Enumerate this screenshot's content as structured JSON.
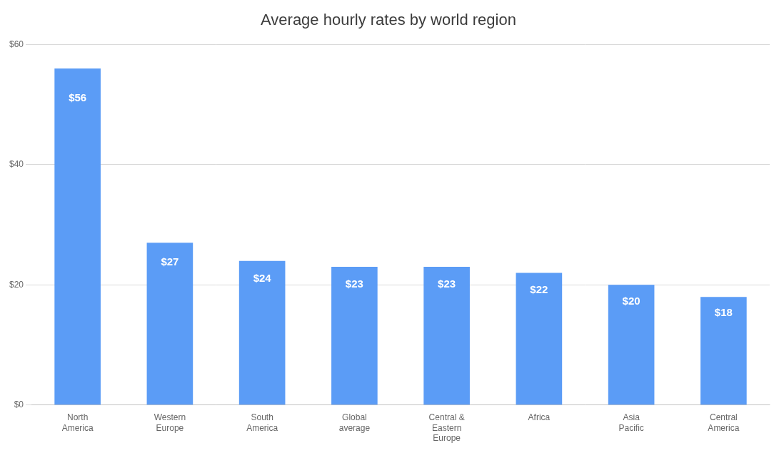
{
  "chart_data": {
    "type": "bar",
    "title": "Average hourly rates by world region",
    "categories": [
      "North\nAmerica",
      "Western\nEurope",
      "South\nAmerica",
      "Global\naverage",
      "Central &\nEastern\nEurope",
      "Africa",
      "Asia\nPacific",
      "Central\nAmerica"
    ],
    "values": [
      56,
      27,
      24,
      23,
      23,
      22,
      20,
      18
    ],
    "value_labels": [
      "$56",
      "$27",
      "$24",
      "$23",
      "$23",
      "$22",
      "$20",
      "$18"
    ],
    "data_labels": true,
    "color": "#5b9cf6",
    "ylim": [
      0,
      60
    ],
    "yticks": [
      {
        "value": 0,
        "label": "$0"
      },
      {
        "value": 20,
        "label": "$20"
      },
      {
        "value": 40,
        "label": "$40"
      },
      {
        "value": 60,
        "label": "$60"
      }
    ],
    "grid": true
  }
}
